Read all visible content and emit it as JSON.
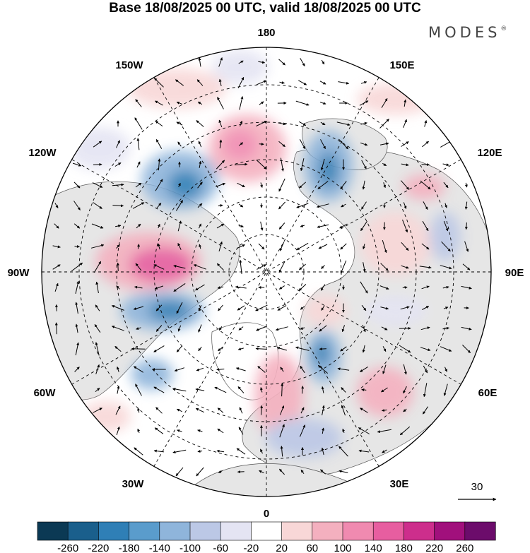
{
  "header": {
    "title": "Base 18/08/2025 00 UTC, valid 18/08/2025 00 UTC",
    "brand": "MODES",
    "brand_mark": "®"
  },
  "map": {
    "projection": "north-polar-stereographic",
    "center_label": "180 at top, 0 at bottom",
    "longitude_labels": {
      "top": "180",
      "bottom": "0",
      "left": "90W",
      "right": "90E",
      "upper_left_1": "150W",
      "upper_left_2": "120W",
      "upper_right_1": "150E",
      "upper_right_2": "120E",
      "lower_left_1": "60W",
      "lower_left_2": "30W",
      "lower_right_1": "60E",
      "lower_right_2": "30E"
    },
    "vector_reference": {
      "value": "30"
    },
    "colors": {
      "land": "#e6e6e6",
      "ocean": "#ffffff",
      "grid": "#000000"
    }
  },
  "colorbar": {
    "labels": [
      "-260",
      "-220",
      "-180",
      "-140",
      "-100",
      "-60",
      "-20",
      "20",
      "60",
      "100",
      "140",
      "180",
      "220",
      "260"
    ],
    "colors": [
      "#0b3954",
      "#1a5f8c",
      "#2f7fb6",
      "#5a9ccc",
      "#8fb5db",
      "#bcc8e6",
      "#e4e4f3",
      "#ffffff",
      "#f8d7d7",
      "#f4b0bf",
      "#f08ab0",
      "#e75ea0",
      "#cd2e8c",
      "#a1107c",
      "#6c0c6b"
    ]
  }
}
